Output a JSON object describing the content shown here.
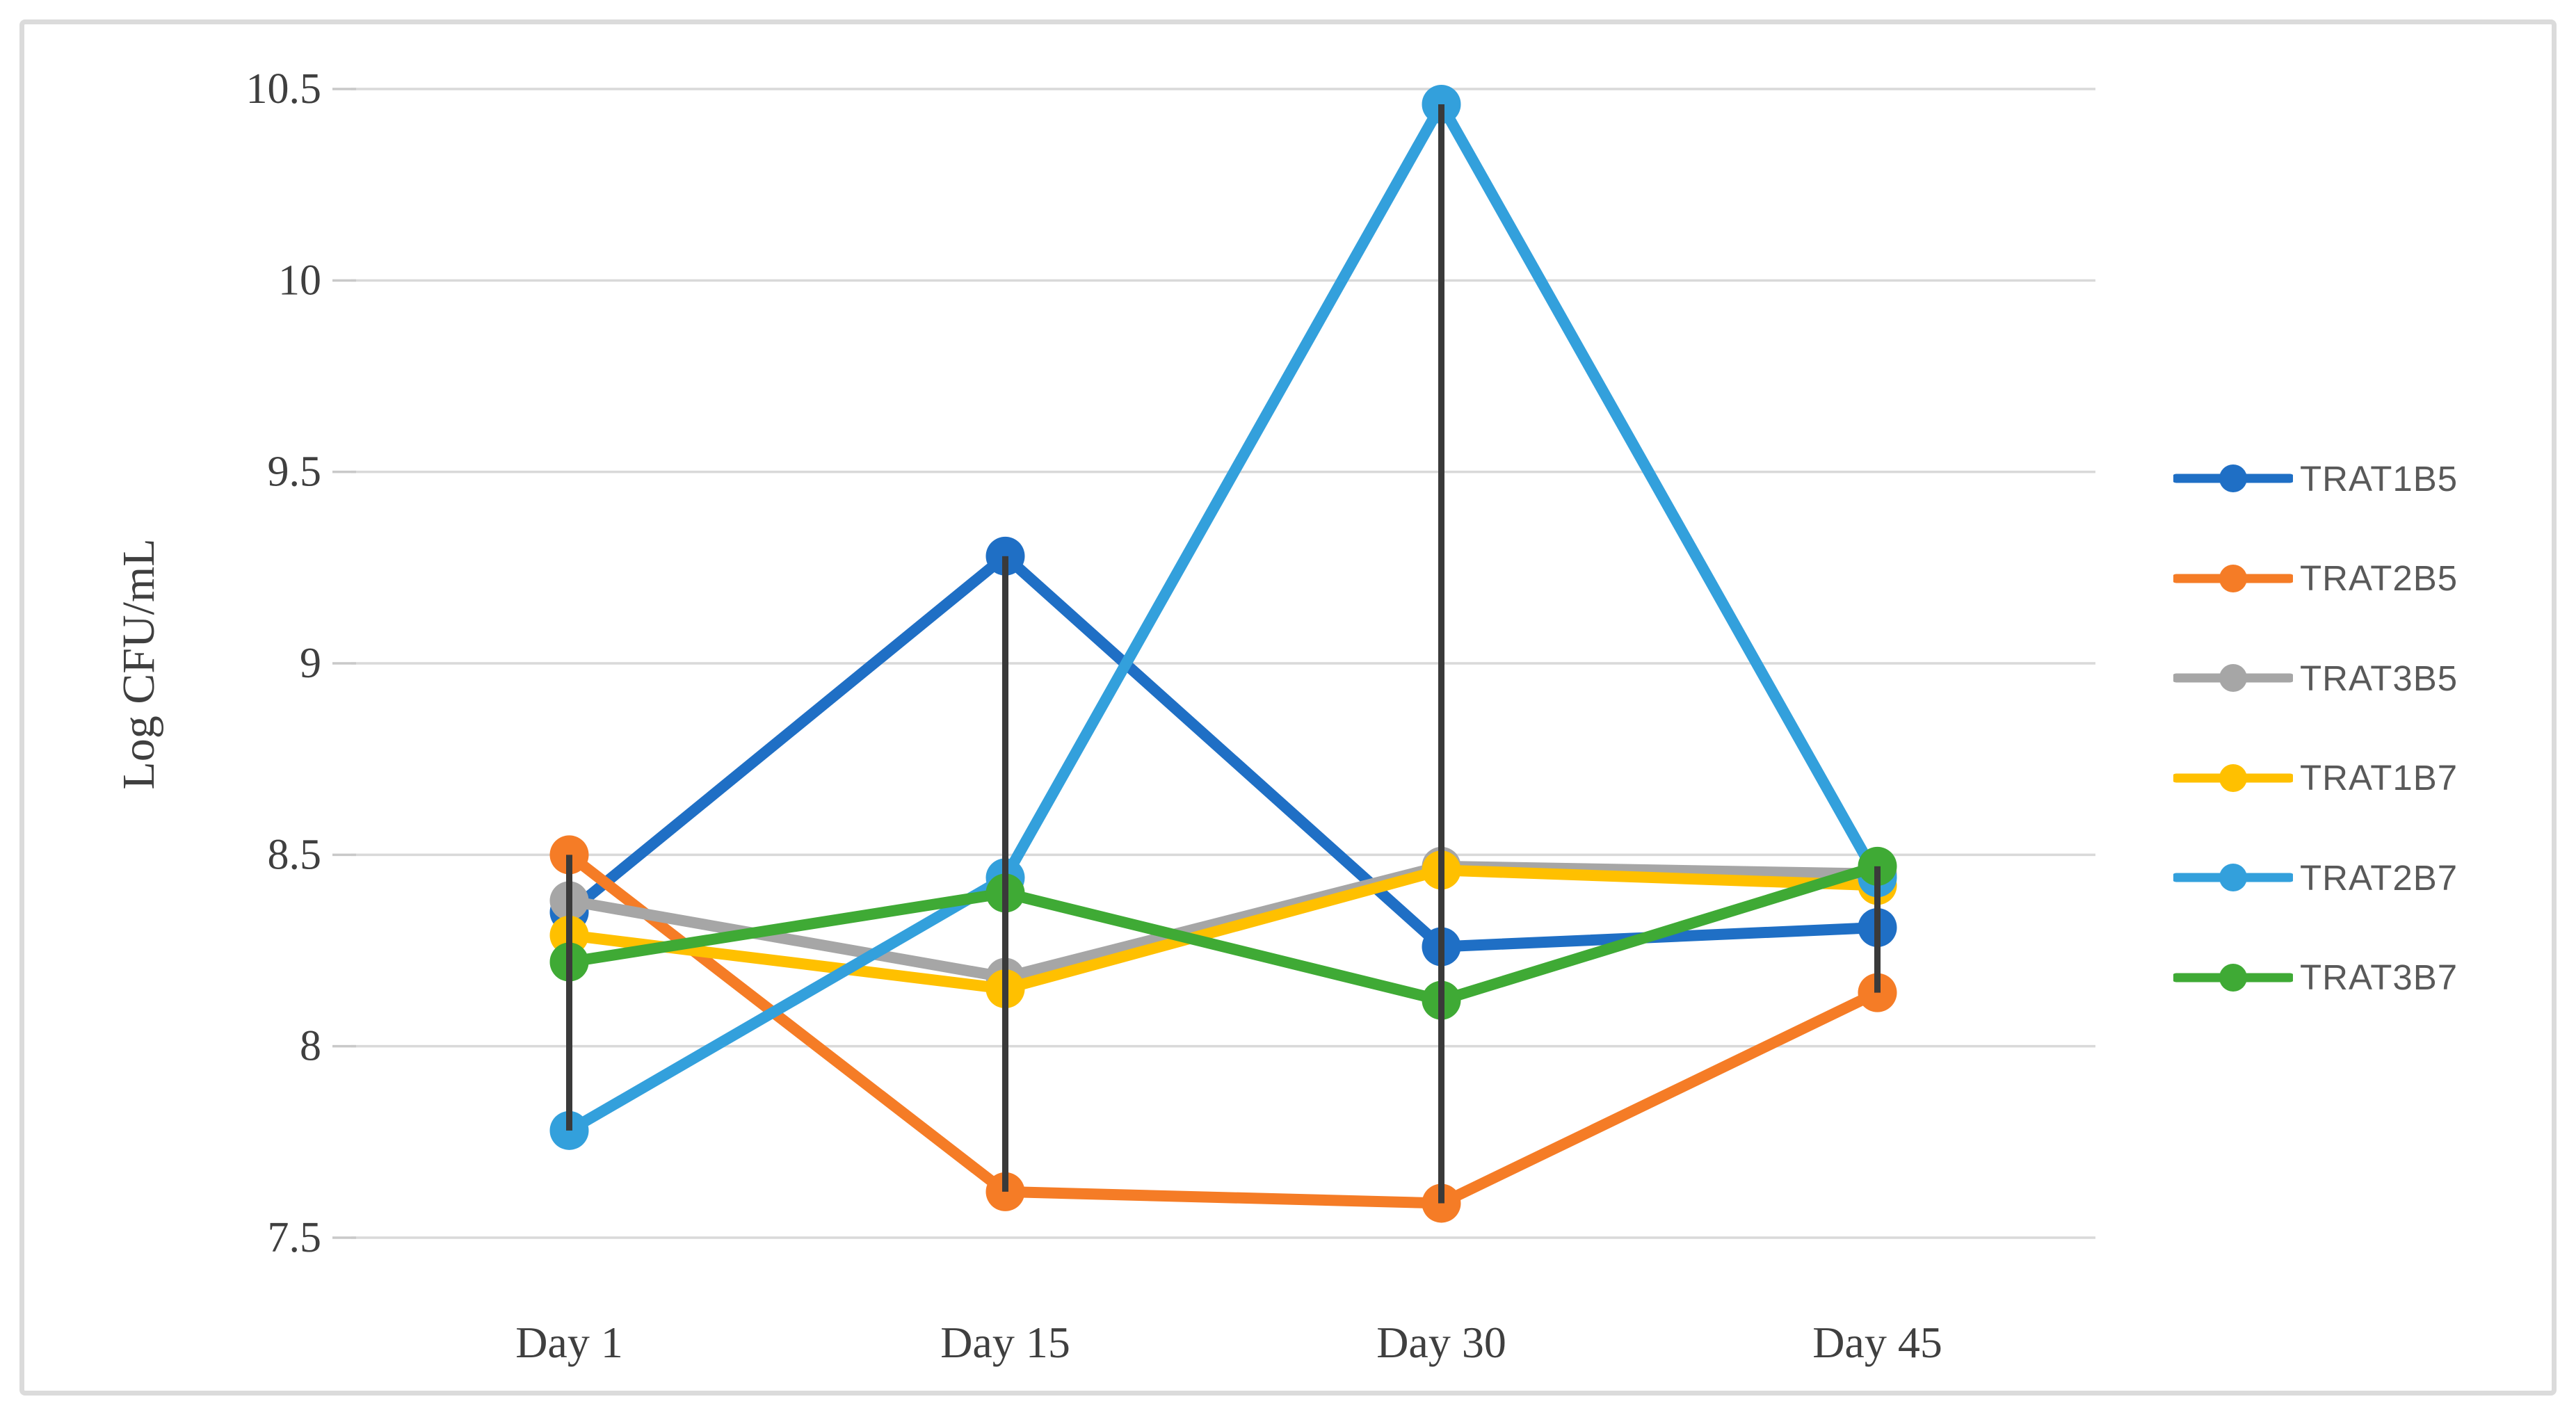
{
  "chart_data": {
    "type": "line",
    "title": "",
    "xlabel": "",
    "ylabel": "Log CFU/mL",
    "categories": [
      "Day 1",
      "Day 15",
      "Day 30",
      "Day 45"
    ],
    "series": [
      {
        "name": "TRAT1B5",
        "color": "#1F6FC5",
        "values": [
          8.35,
          9.28,
          8.26,
          8.31
        ]
      },
      {
        "name": "TRAT2B5",
        "color": "#F57C26",
        "values": [
          8.5,
          7.62,
          7.59,
          8.14
        ]
      },
      {
        "name": "TRAT3B5",
        "color": "#A6A6A6",
        "values": [
          8.38,
          8.18,
          8.47,
          8.45
        ]
      },
      {
        "name": "TRAT1B7",
        "color": "#FFC000",
        "values": [
          8.29,
          8.15,
          8.46,
          8.42
        ]
      },
      {
        "name": "TRAT2B7",
        "color": "#33A0DC",
        "values": [
          7.78,
          8.44,
          10.46,
          8.44
        ]
      },
      {
        "name": "TRAT3B7",
        "color": "#3FAA35",
        "values": [
          8.22,
          8.4,
          8.12,
          8.47
        ]
      }
    ],
    "y_axis": {
      "min": 7.5,
      "max": 10.5,
      "step": 0.5,
      "tick_labels_top_to_bottom": [
        "10.5",
        "10",
        "9.5",
        "9",
        "8.5",
        "8",
        "7.5"
      ]
    },
    "high_low_lines": true,
    "grid": true,
    "legend_position": "right",
    "marker": "circle"
  },
  "colors": {
    "gridline": "#d9d9d9",
    "tick": "#c9c9c9",
    "figure_border": "#dbdbdb",
    "axis_text": "#3f3f3f",
    "legend_text": "#595959",
    "high_low_line": "#3a3a3a",
    "background": "#ffffff"
  }
}
